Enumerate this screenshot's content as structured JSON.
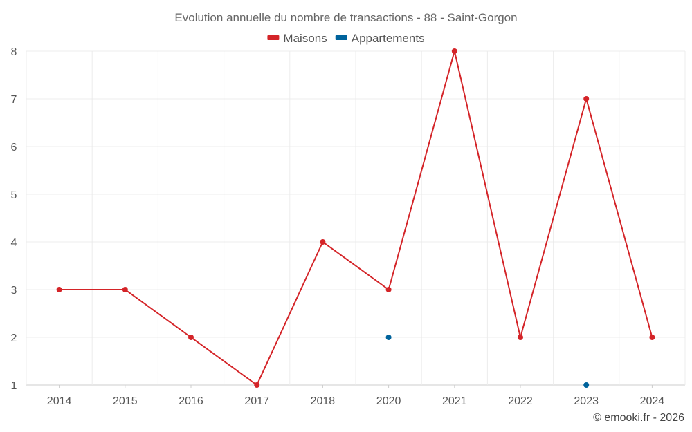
{
  "chart_data": {
    "type": "line",
    "title": "Evolution annuelle du nombre de transactions - 88 - Saint-Gorgon",
    "categories": [
      "2014",
      "2015",
      "2016",
      "2017",
      "2018",
      "2020",
      "2021",
      "2022",
      "2023",
      "2024"
    ],
    "series": [
      {
        "name": "Maisons",
        "color": "#d42428",
        "values": [
          3,
          3,
          2,
          1,
          4,
          3,
          8,
          2,
          7,
          2
        ]
      },
      {
        "name": "Appartements",
        "color": "#00639c",
        "values": [
          null,
          null,
          null,
          null,
          null,
          2,
          null,
          null,
          1,
          null
        ]
      }
    ],
    "y_ticks": [
      "1",
      "2",
      "3",
      "4",
      "5",
      "6",
      "7",
      "8"
    ],
    "ylim": [
      1,
      8
    ],
    "xlabel": "",
    "ylabel": "",
    "grid": true,
    "legend_position": "top-center"
  },
  "credit": "© emooki.fr - 2026"
}
